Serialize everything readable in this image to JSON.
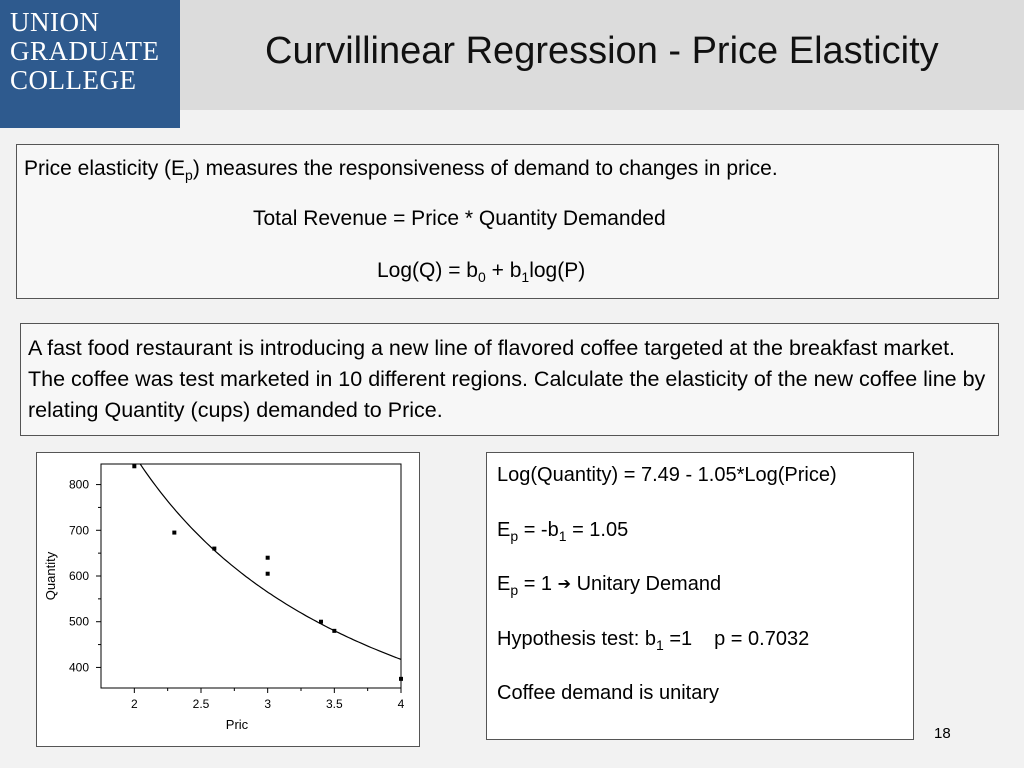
{
  "logo": {
    "lines": [
      "UNION",
      "GRADUATE",
      "COLLEGE"
    ]
  },
  "title": "Curvillinear Regression - Price Elasticity",
  "definitions": {
    "line1_a": "Price elasticity (E",
    "line1_sub": "p",
    "line1_b": ") measures the responsiveness of demand to changes in price.",
    "line2": "Total Revenue = Price * Quantity Demanded",
    "line3_a": "Log(Q) = b",
    "line3_sub0": "0",
    "line3_b": " + b",
    "line3_sub1": "1",
    "line3_c": "log(P)"
  },
  "problem": "A fast food restaurant is introducing a new line of flavored coffee targeted at the breakfast market. The coffee was test marketed in 10 different regions. Calculate the elasticity of the new coffee line by relating Quantity (cups) demanded to Price.",
  "results": {
    "equation": "Log(Quantity) = 7.49 - 1.05*Log(Price)",
    "ep_a": "E",
    "ep_sub": "p",
    "ep_b": " = -b",
    "ep_sub1": "1",
    "ep_c": " = 1.05",
    "unit_a": "E",
    "unit_sub": "p",
    "unit_b": " = 1 ",
    "unit_arrow": "➔",
    "unit_c": " Unitary Demand",
    "hyp_a": "Hypothesis test:  b",
    "hyp_sub": "1",
    "hyp_b": " =1",
    "hyp_c": "p = 0.7032",
    "conclusion": "Coffee demand is unitary"
  },
  "page_number": "18",
  "chart_data": {
    "type": "scatter",
    "xlabel": "Pric",
    "ylabel": "Quantity",
    "xlim": [
      1.75,
      4.0
    ],
    "ylim": [
      355,
      845
    ],
    "xticks": [
      2,
      2.5,
      3,
      3.5,
      4
    ],
    "xtick_labels": [
      "2",
      "2.5",
      "3",
      "3.5",
      "4"
    ],
    "yticks": [
      400,
      500,
      600,
      700,
      800
    ],
    "ytick_labels": [
      "400",
      "500",
      "600",
      "700",
      "800"
    ],
    "points": [
      {
        "x": 2.0,
        "y": 840
      },
      {
        "x": 2.3,
        "y": 695
      },
      {
        "x": 2.6,
        "y": 660
      },
      {
        "x": 3.0,
        "y": 640
      },
      {
        "x": 3.0,
        "y": 605
      },
      {
        "x": 3.4,
        "y": 500
      },
      {
        "x": 3.5,
        "y": 480
      },
      {
        "x": 4.0,
        "y": 375
      }
    ],
    "fit": {
      "type": "power",
      "a": 1790,
      "b": -1.05
    },
    "grid": false
  }
}
